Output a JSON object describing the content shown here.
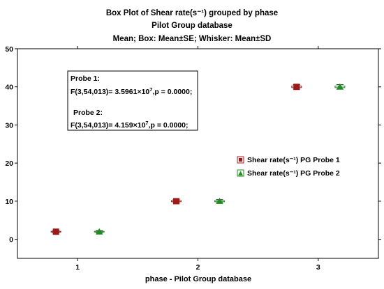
{
  "chart_data": {
    "type": "scatter",
    "title": "Box Plot of Shear rate(s⁻¹) grouped by  phase",
    "subtitle": "Pilot Group database",
    "subtitle2": "Mean; Box: Mean±SE; Whisker: Mean±SD",
    "xlabel": "phase - Pilot Group database",
    "ylabel": "",
    "categories": [
      "1",
      "2",
      "3"
    ],
    "xlim": [
      0.5,
      3.5
    ],
    "ylim": [
      -5,
      50
    ],
    "yticks": [
      0,
      10,
      20,
      30,
      40,
      50
    ],
    "grid": false,
    "legend_position": "right",
    "series": [
      {
        "name": "Shear rate(s⁻¹) PG Probe 1",
        "marker": "square",
        "color": "#9b1b1b",
        "offset": -0.18,
        "values": [
          2,
          10,
          40
        ],
        "se": [
          0.1,
          0.15,
          0.2
        ],
        "sd": [
          0.35,
          0.4,
          0.6
        ]
      },
      {
        "name": "Shear rate(s⁻¹) PG Probe 2",
        "marker": "triangle",
        "color": "#1e8c1e",
        "offset": 0.18,
        "values": [
          2,
          10,
          40
        ],
        "se": [
          0.1,
          0.15,
          0.2
        ],
        "sd": [
          0.3,
          0.4,
          0.6
        ]
      }
    ],
    "annotation": {
      "probe1_title": "Probe 1:",
      "probe1_prefix": "F(3,54,013)= 3.5961×10",
      "probe1_exp": "7",
      "probe1_suffix": ",p = 0.0000;",
      "probe2_title": "Probe 2:",
      "probe2_prefix": "F(3,54,013)= 4.159×10",
      "probe2_exp": "7",
      "probe2_suffix": ",p = 0.0000;"
    }
  }
}
